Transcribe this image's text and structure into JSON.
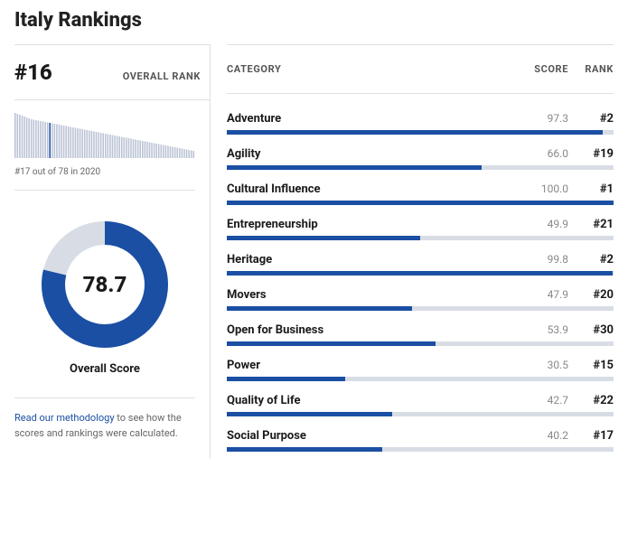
{
  "title": "Italy Rankings",
  "overall": {
    "rank_display": "#16",
    "rank_label": "OVERALL RANK",
    "prev_note": "#17 out of 78 in 2020",
    "score": 78.7,
    "score_display": "78.7",
    "score_label": "Overall Score"
  },
  "donut": {
    "fill_color": "#1a4fa3",
    "track_color": "#d8dde5",
    "thickness": 26,
    "percent": 78.7
  },
  "sparkline": {
    "bar_color": "#b9c2d4",
    "highlight_color": "#1a4fa3",
    "highlight_index": 15,
    "values": [
      100,
      98,
      96,
      94,
      92,
      90,
      88,
      86,
      85,
      84,
      83,
      82,
      81,
      80,
      79,
      78,
      77,
      76,
      75,
      74,
      73,
      72,
      71,
      70,
      69,
      68,
      67,
      66,
      65,
      64,
      63,
      62,
      61,
      60,
      59,
      58,
      57,
      56,
      55,
      54,
      53,
      52,
      51,
      50,
      49,
      48,
      47,
      46,
      45,
      44,
      43,
      42,
      41,
      40,
      39,
      38,
      37,
      36,
      35,
      34,
      33,
      32,
      31,
      30,
      29,
      28,
      27,
      26,
      25,
      24,
      23,
      22,
      21,
      20,
      19,
      18,
      17,
      16
    ]
  },
  "methodology": {
    "link_text": "Read our methodology",
    "rest": " to see how the scores and rankings were calculated."
  },
  "headers": {
    "category": "CATEGORY",
    "score": "SCORE",
    "rank": "RANK"
  },
  "bar_style": {
    "fill_color": "#1a4fa3",
    "track_color": "#d8dde5"
  },
  "categories": [
    {
      "name": "Adventure",
      "score": 97.3,
      "rank": "#2"
    },
    {
      "name": "Agility",
      "score": 66.0,
      "rank": "#19"
    },
    {
      "name": "Cultural Influence",
      "score": 100.0,
      "rank": "#1"
    },
    {
      "name": "Entrepreneurship",
      "score": 49.9,
      "rank": "#21"
    },
    {
      "name": "Heritage",
      "score": 99.8,
      "rank": "#2"
    },
    {
      "name": "Movers",
      "score": 47.9,
      "rank": "#20"
    },
    {
      "name": "Open for Business",
      "score": 53.9,
      "rank": "#30"
    },
    {
      "name": "Power",
      "score": 30.5,
      "rank": "#15"
    },
    {
      "name": "Quality of Life",
      "score": 42.7,
      "rank": "#22"
    },
    {
      "name": "Social Purpose",
      "score": 40.2,
      "rank": "#17"
    }
  ]
}
